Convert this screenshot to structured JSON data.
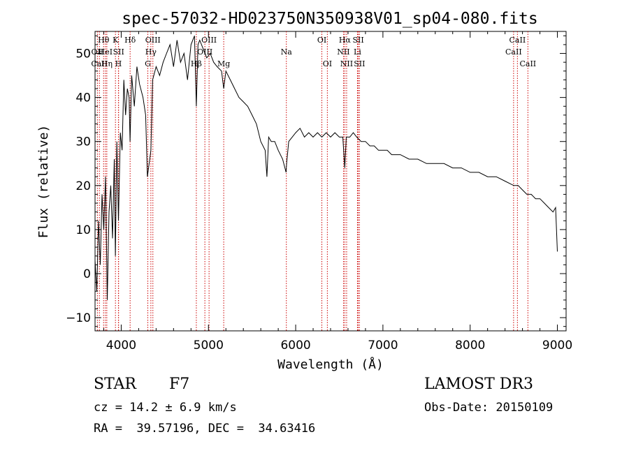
{
  "chart_data": {
    "type": "line",
    "title": "spec-57032-HD023750N350938V01_sp04-080.fits",
    "xlabel": "Wavelength (Å)",
    "ylabel": "Flux (relative)",
    "xlim": [
      3700,
      9100
    ],
    "ylim": [
      -13,
      55
    ],
    "xticks": [
      4000,
      5000,
      6000,
      7000,
      8000,
      9000
    ],
    "yticks": [
      -10,
      0,
      10,
      20,
      30,
      40,
      50
    ],
    "grid": false,
    "line_color": "#000000",
    "marker_color": "#cc0000",
    "series": [
      {
        "x": [
          3700,
          3720,
          3740,
          3760,
          3780,
          3800,
          3820,
          3840,
          3860,
          3880,
          3900,
          3920,
          3933,
          3950,
          3968,
          3990,
          4010,
          4030,
          4050,
          4070,
          4090,
          4101,
          4120,
          4150,
          4180,
          4210,
          4250,
          4280,
          4300,
          4340,
          4360,
          4400,
          4440,
          4480,
          4520,
          4560,
          4600,
          4640,
          4680,
          4720,
          4760,
          4800,
          4840,
          4861,
          4880,
          4900,
          4940,
          4980,
          5020,
          5060,
          5100,
          5150,
          5175,
          5200,
          5250,
          5300,
          5350,
          5400,
          5450,
          5500,
          5550,
          5600,
          5650,
          5670,
          5690,
          5720,
          5760,
          5800,
          5850,
          5890,
          5896,
          5920,
          5960,
          6000,
          6050,
          6100,
          6150,
          6200,
          6250,
          6300,
          6350,
          6400,
          6450,
          6500,
          6540,
          6563,
          6580,
          6620,
          6660,
          6700,
          6750,
          6800,
          6850,
          6900,
          6950,
          7000,
          7050,
          7100,
          7150,
          7200,
          7300,
          7400,
          7500,
          7600,
          7700,
          7800,
          7900,
          8000,
          8100,
          8200,
          8300,
          8400,
          8500,
          8550,
          8600,
          8650,
          8700,
          8750,
          8800,
          8850,
          8900,
          8950,
          8980,
          9000
        ],
        "y": [
          3,
          -4,
          12,
          2,
          18,
          10,
          22,
          -6,
          14,
          20,
          8,
          26,
          4,
          30,
          12,
          32,
          28,
          44,
          36,
          42,
          40,
          30,
          45,
          38,
          47,
          43,
          40,
          36,
          22,
          28,
          44,
          47,
          45,
          48,
          50,
          52,
          47,
          53,
          48,
          50,
          44,
          52,
          54,
          38,
          52,
          53,
          51,
          49,
          50,
          48,
          47,
          46,
          42,
          46,
          44,
          42,
          40,
          39,
          38,
          36,
          34,
          30,
          28,
          22,
          31,
          30,
          30,
          28,
          26,
          23,
          25,
          30,
          31,
          32,
          33,
          31,
          32,
          31,
          32,
          31,
          32,
          31,
          32,
          31,
          31,
          24,
          31,
          31,
          32,
          31,
          30,
          30,
          29,
          29,
          28,
          28,
          28,
          27,
          27,
          27,
          26,
          26,
          25,
          25,
          25,
          24,
          24,
          23,
          23,
          22,
          22,
          21,
          20,
          20,
          19,
          18,
          18,
          17,
          17,
          16,
          15,
          14,
          15,
          5
        ]
      }
    ],
    "line_markers": [
      {
        "label": "Hθ",
        "x": 3798,
        "row": 1
      },
      {
        "label": "OII",
        "x": 3727,
        "row": 2
      },
      {
        "label": "HeI",
        "x": 3819,
        "row": 2
      },
      {
        "label": "CaII",
        "x": 3750,
        "row": 3
      },
      {
        "label": "Hη",
        "x": 3835,
        "row": 3
      },
      {
        "label": "K",
        "x": 3934,
        "row": 1
      },
      {
        "label": "SII",
        "x": 3970,
        "row": 2
      },
      {
        "label": "H",
        "x": 3968,
        "row": 3
      },
      {
        "label": "Hδ",
        "x": 4102,
        "row": 1
      },
      {
        "label": "OIII",
        "x": 4363,
        "row": 1
      },
      {
        "label": "Hγ",
        "x": 4340,
        "row": 2
      },
      {
        "label": "G",
        "x": 4305,
        "row": 3
      },
      {
        "label": "Hβ",
        "x": 4861,
        "row": 3
      },
      {
        "label": "OIII",
        "x": 5007,
        "row": 1
      },
      {
        "label": "OIII",
        "x": 4959,
        "row": 2
      },
      {
        "label": "Mg",
        "x": 5175,
        "row": 3
      },
      {
        "label": "Na",
        "x": 5893,
        "row": 2
      },
      {
        "label": "OI",
        "x": 6300,
        "row": 1
      },
      {
        "label": "OI",
        "x": 6363,
        "row": 3
      },
      {
        "label": "Hα",
        "x": 6563,
        "row": 1
      },
      {
        "label": "NII",
        "x": 6548,
        "row": 2
      },
      {
        "label": "NII",
        "x": 6584,
        "row": 3
      },
      {
        "label": "SII",
        "x": 6717,
        "row": 1
      },
      {
        "label": "Li",
        "x": 6708,
        "row": 2
      },
      {
        "label": "SII",
        "x": 6731,
        "row": 3
      },
      {
        "label": "CaII",
        "x": 8542,
        "row": 1
      },
      {
        "label": "CaII",
        "x": 8498,
        "row": 2
      },
      {
        "label": "CaII",
        "x": 8662,
        "row": 3
      }
    ]
  },
  "info": {
    "star_label": "STAR",
    "spectral_type": "F7",
    "survey": "LAMOST DR3",
    "cz": "cz = 14.2 ± 6.9 km/s",
    "obs_date": "Obs-Date: 20150109",
    "coords": "RA =  39.57196, DEC =  34.63416"
  }
}
